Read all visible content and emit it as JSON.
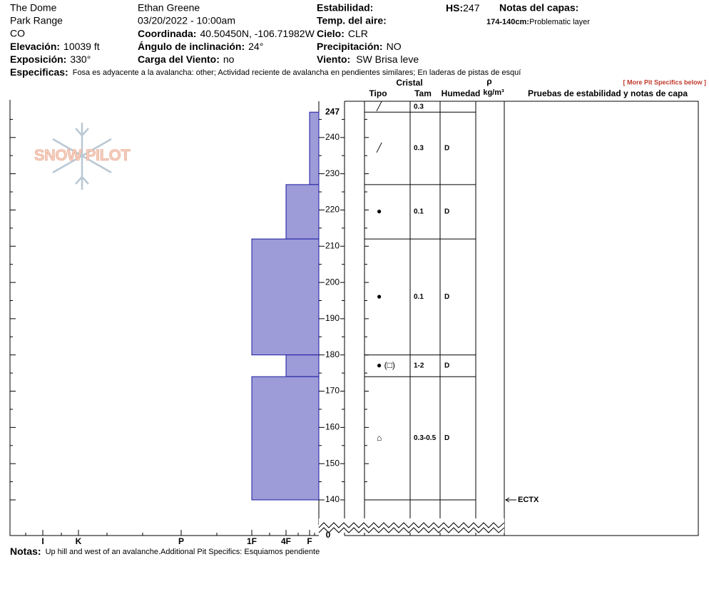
{
  "header": {
    "location": [
      "The Dome",
      "Park Range",
      "CO"
    ],
    "observer": "Ethan Greene",
    "datetime": "03/20/2022 - 10:00am",
    "fields": [
      {
        "label": "Elevación:",
        "value": "10039 ft"
      },
      {
        "label": "Exposición:",
        "value": "330°"
      },
      {
        "label": "Coordinada:",
        "value": "40.50450N, -106.71982W"
      },
      {
        "label": "Ángulo de inclinación:",
        "value": "24°"
      },
      {
        "label": "Carga del Viento:",
        "value": "no"
      },
      {
        "label": "Estabilidad:"
      },
      {
        "label": "Temp. del aire:"
      },
      {
        "label": "Cielo:",
        "value": "CLR"
      },
      {
        "label": "Precipitación:",
        "value": "NO"
      },
      {
        "label": "Viento:",
        "value": "SW  Brisa leve"
      },
      {
        "label": "HS:",
        "value": "247"
      }
    ],
    "layer_notes": {
      "title": "Notas del capas:",
      "range": "174-140cm:",
      "text": "Problematic layer"
    },
    "specifics": {
      "label": "Especificas:",
      "text": "Fosa es adyacente a la avalancha: other; Actividad reciente de avalancha en pendientes similares; En laderas de pistas de esquí"
    },
    "more_link": "[ More Pit Specifics below ]"
  },
  "logo": "SNOW PILOT",
  "columns": {
    "crystal": "Cristal",
    "type": "Tipo",
    "size": "Tam",
    "moisture": "Humedad",
    "density": "ρ",
    "density_unit": "kg/m³",
    "tests": "Pruebas de estabilidad y notas de capa"
  },
  "chart_data": {
    "type": "snowpit",
    "color": "#9d9bd8",
    "ylim": [
      140,
      250
    ],
    "yticks": [
      140,
      150,
      160,
      170,
      180,
      190,
      200,
      210,
      220,
      230,
      240
    ],
    "top_tick": 247,
    "break_tick": 0,
    "hardness_ticks": [
      "I",
      "K",
      "P",
      "1F",
      "4F",
      "F"
    ],
    "layers": [
      {
        "top": 247,
        "bottom": 227,
        "hardness": "F"
      },
      {
        "top": 227,
        "bottom": 212,
        "hardness": "4F"
      },
      {
        "top": 212,
        "bottom": 180,
        "hardness": "1F"
      },
      {
        "top": 180,
        "bottom": 174,
        "hardness": "4F"
      },
      {
        "top": 174,
        "bottom": 140,
        "hardness": "1F"
      }
    ],
    "rows": [
      {
        "grain": "╱",
        "size": "0.3"
      },
      {
        "grain": "╱",
        "size": "0.3",
        "moisture": "D"
      },
      {
        "grain": "●",
        "size": "0.1",
        "moisture": "D"
      },
      {
        "grain": "●",
        "size": "0.1",
        "moisture": "D"
      },
      {
        "grain": "● (□)",
        "size": "1-2",
        "moisture": "D"
      },
      {
        "grain": "⌂",
        "size": "0.3-0.5",
        "moisture": "D"
      }
    ],
    "tests": [
      {
        "depth": 140,
        "label": "ECTX"
      }
    ]
  },
  "notes": {
    "label": "Notas:",
    "text": "Up hill and west of an avalanche.Additional Pit Specifics: Esquiamos pendiente"
  }
}
